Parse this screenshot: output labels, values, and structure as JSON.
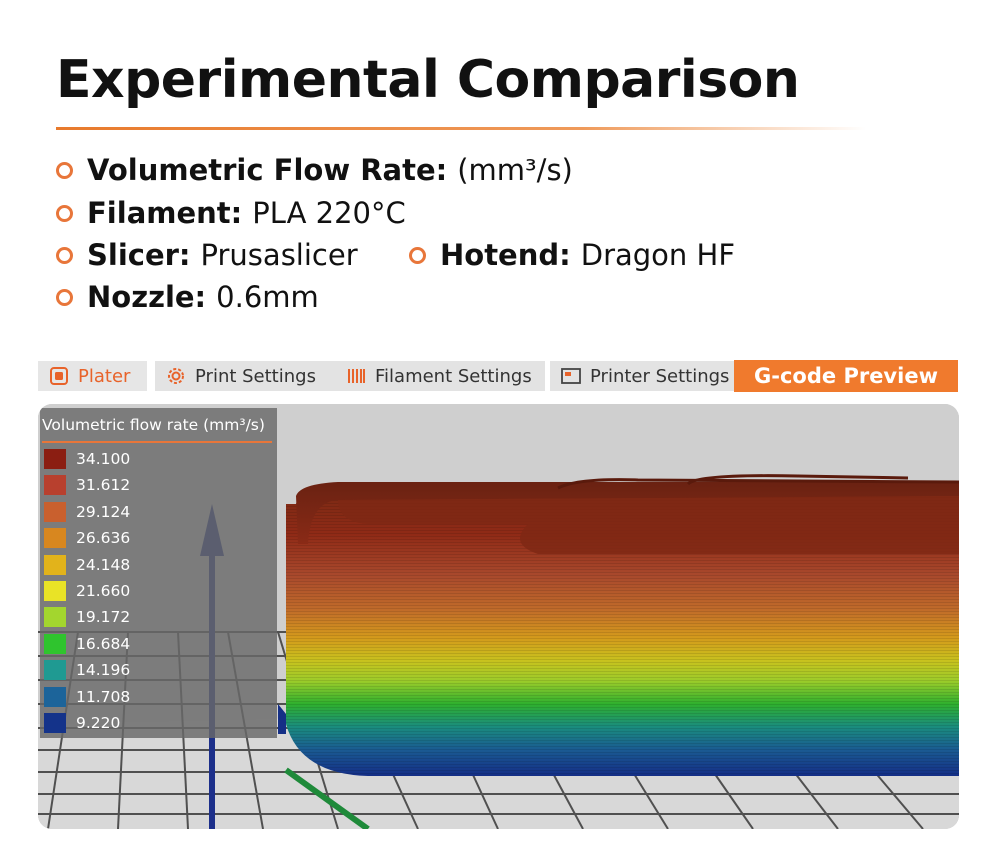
{
  "heading": {
    "title": "Experimental Comparison"
  },
  "specs": {
    "flow": {
      "label": "Volumetric Flow Rate:",
      "value": "(mm³/s)"
    },
    "filament": {
      "label": "Filament:",
      "value": "PLA 220°C"
    },
    "slicer": {
      "label": "Slicer:",
      "value": "Prusaslicer"
    },
    "hotend": {
      "label": "Hotend:",
      "value": "Dragon HF"
    },
    "nozzle": {
      "label": "Nozzle:",
      "value": "0.6mm"
    }
  },
  "tabs": {
    "plater": "Plater",
    "print_settings": "Print Settings",
    "filament_settings": "Filament Settings",
    "printer_settings": "Printer Settings",
    "gcode_preview": "G-code Preview"
  },
  "legend": {
    "title": "Volumetric flow rate (mm³/s)",
    "items": [
      {
        "value": "34.100",
        "color": "#8b1e12"
      },
      {
        "value": "31.612",
        "color": "#b8402e"
      },
      {
        "value": "29.124",
        "color": "#c9602e"
      },
      {
        "value": "26.636",
        "color": "#d8871f"
      },
      {
        "value": "24.148",
        "color": "#e2b31b"
      },
      {
        "value": "21.660",
        "color": "#e9e326"
      },
      {
        "value": "19.172",
        "color": "#a3d62e"
      },
      {
        "value": "16.684",
        "color": "#2fc42e"
      },
      {
        "value": "14.196",
        "color": "#1f9a92"
      },
      {
        "value": "11.708",
        "color": "#1c649a"
      },
      {
        "value": "9.220",
        "color": "#14338a"
      }
    ]
  },
  "colors": {
    "accent": "#f07a2d",
    "tab_bg": "#e3e3e3",
    "viewport_bg": "#cdcdcd"
  }
}
